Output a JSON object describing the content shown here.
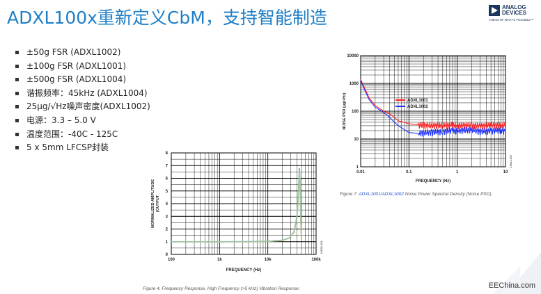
{
  "slide": {
    "title": "ADXL100x重新定义CbM，支持智能制造",
    "logo": {
      "line1": "ANALOG",
      "line2": "DEVICES",
      "tagline": "AHEAD OF WHAT'S POSSIBLE™"
    },
    "bullets": [
      "±50g FSR (ADXL1002)",
      "±100g FSR (ADXL1001)",
      "±500g FSR (ADXL1004)",
      "谐振频率：45kHz (ADXL1004)",
      "25μg/√Hz噪声密度(ADXL1002)",
      "电源：3.3 – 5.0 V",
      "温度范围：-40C - 125C",
      "5 x 5mm LFCSP封装"
    ],
    "footer": "EEChina.com"
  },
  "chart_data": [
    {
      "type": "line",
      "title": "",
      "xlabel": "FREQUENCY (Hz)",
      "ylabel": "NORMALIZED AMPLITUDE (OUTPUT (g)/REFERENCE (g))",
      "x_scale": "log",
      "xlim": [
        100,
        100000
      ],
      "ylim": [
        0,
        8
      ],
      "x_ticks": [
        "100",
        "1k",
        "10k",
        "100k"
      ],
      "y_ticks": [
        "0",
        "1",
        "2",
        "3",
        "4",
        "5",
        "6",
        "7",
        "8"
      ],
      "grid": true,
      "side_code": "16608-004",
      "caption": "Figure 4. Frequency Response, High Frequency (>5 kHz) Vibration Response;",
      "series": [
        {
          "x": [
            100,
            1000,
            5000,
            10000,
            20000,
            28000,
            35000,
            40000,
            43000,
            45000,
            46500,
            48000,
            49000,
            50000
          ],
          "y": [
            1.0,
            1.0,
            1.01,
            1.03,
            1.12,
            1.3,
            1.8,
            3.0,
            5.0,
            6.8,
            6.0,
            3.2,
            1.8,
            1.2
          ],
          "color": "#7a9ac9"
        },
        {
          "x": [
            100,
            1000,
            5000,
            10000,
            20000,
            28000,
            35000,
            40000,
            43000,
            45000,
            46500,
            48000,
            49000,
            50000
          ],
          "y": [
            1.0,
            1.0,
            1.0,
            1.02,
            1.1,
            1.28,
            1.75,
            2.8,
            4.6,
            6.5,
            5.8,
            3.0,
            1.7,
            1.15
          ],
          "color": "#e8b04b"
        },
        {
          "x": [
            100,
            1000,
            5000,
            10000,
            20000,
            28000,
            35000,
            40000,
            43000,
            45000,
            46500,
            48000,
            49000,
            50000
          ],
          "y": [
            1.0,
            1.0,
            1.0,
            1.02,
            1.11,
            1.29,
            1.78,
            2.9,
            4.8,
            6.6,
            5.9,
            3.1,
            1.75,
            1.18
          ],
          "color": "#9ec6a4"
        }
      ]
    },
    {
      "type": "line",
      "title": "",
      "xlabel": "FREQUENCY (Hz)",
      "ylabel": "NOISE PSD (μg/√Hz)",
      "x_scale": "log",
      "y_scale": "log",
      "xlim": [
        0.01,
        10
      ],
      "ylim": [
        1,
        10000
      ],
      "x_ticks": [
        "0.01",
        "0.1",
        "1",
        "10"
      ],
      "y_ticks": [
        "1",
        "10",
        "100",
        "1000",
        "10000"
      ],
      "grid": true,
      "legend_position": "inside-top-center",
      "side_code": "16541-007",
      "caption_prefix": "Figure 7. ",
      "caption_link": "ADXL1001/ADXL1002",
      "caption_suffix": " Noise Power Spectral Density (Noise PSD)",
      "series": [
        {
          "name": "ADXL1001",
          "color": "#ff2020",
          "x": [
            0.01,
            0.012,
            0.015,
            0.02,
            0.03,
            0.04,
            0.05,
            0.06,
            0.08,
            0.1,
            0.15,
            0.2,
            0.3,
            0.5,
            0.8,
            1,
            2,
            3,
            5,
            8,
            10
          ],
          "y": [
            1400,
            700,
            300,
            160,
            100,
            80,
            60,
            45,
            40,
            35,
            33,
            32,
            31,
            32,
            33,
            31,
            32,
            30,
            33,
            31,
            32
          ]
        },
        {
          "name": "ADXL1002",
          "color": "#2030ff",
          "x": [
            0.01,
            0.012,
            0.015,
            0.02,
            0.03,
            0.04,
            0.05,
            0.06,
            0.08,
            0.1,
            0.15,
            0.2,
            0.3,
            0.5,
            0.8,
            1,
            2,
            3,
            5,
            8,
            10
          ],
          "y": [
            1300,
            600,
            260,
            140,
            90,
            60,
            40,
            30,
            22,
            17,
            16,
            17,
            18,
            19,
            21,
            20,
            22,
            19,
            20,
            21,
            19
          ]
        }
      ]
    }
  ]
}
